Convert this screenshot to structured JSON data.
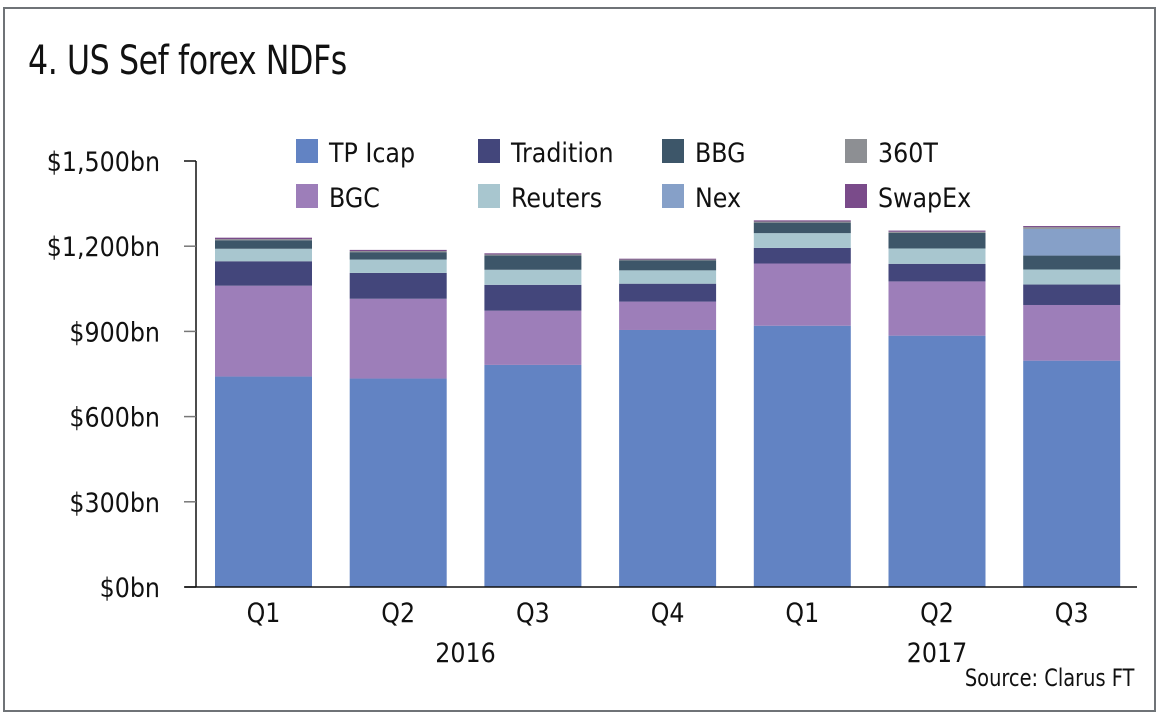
{
  "chart_data": {
    "type": "bar",
    "stacked": true,
    "title": "4. US Sef forex NDFs",
    "source": "Source: Clarus FT",
    "xlabel": "",
    "ylabel": "",
    "ylim": [
      0,
      1500
    ],
    "yticks": [
      0,
      300,
      600,
      900,
      1200,
      1500
    ],
    "ytick_labels": [
      "$0bn",
      "$300bn",
      "$600bn",
      "$900bn",
      "$1,200bn",
      "$1,500bn"
    ],
    "grid": false,
    "legend_position": "top",
    "categories": [
      "Q1",
      "Q2",
      "Q3",
      "Q4",
      "Q1",
      "Q2",
      "Q3"
    ],
    "year_groups": [
      {
        "label": "2016",
        "start": 0,
        "end": 3
      },
      {
        "label": "2017",
        "start": 4,
        "end": 6
      }
    ],
    "legend_order": [
      "TP Icap",
      "Tradition",
      "BBG",
      "360T",
      "BGC",
      "Reuters",
      "Nex",
      "SwapEx"
    ],
    "series": [
      {
        "name": "TP Icap",
        "color": "#6283c3",
        "values": [
          741,
          734,
          782,
          905,
          920,
          885,
          797
        ]
      },
      {
        "name": "BGC",
        "color": "#9d7eb9",
        "values": [
          320,
          281,
          191,
          100,
          219,
          191,
          196
        ]
      },
      {
        "name": "Tradition",
        "color": "#43467b",
        "values": [
          86,
          91,
          91,
          63,
          55,
          62,
          72
        ]
      },
      {
        "name": "Reuters",
        "color": "#a8c6cf",
        "values": [
          44,
          47,
          53,
          47,
          52,
          54,
          53
        ]
      },
      {
        "name": "BBG",
        "color": "#3d5669",
        "values": [
          30,
          26,
          50,
          35,
          37,
          55,
          49
        ]
      },
      {
        "name": "Nex",
        "color": "#86a0c8",
        "values": [
          0,
          0,
          0,
          0,
          0,
          0,
          94
        ]
      },
      {
        "name": "360T",
        "color": "#8d8f93",
        "values": [
          4,
          4,
          4,
          3,
          4,
          4,
          6
        ]
      },
      {
        "name": "SwapEx",
        "color": "#7a4b8a",
        "values": [
          5,
          4,
          4,
          3,
          4,
          4,
          4
        ]
      }
    ]
  }
}
